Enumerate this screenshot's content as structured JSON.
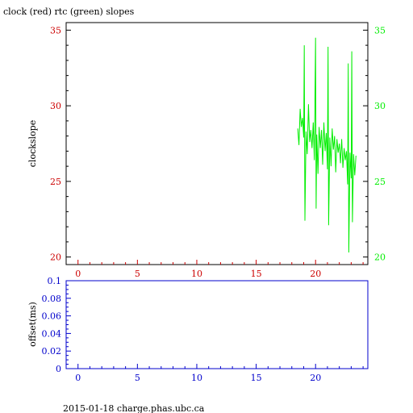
{
  "chart_data": [
    {
      "type": "line",
      "title": "clock (red) rtc (green) slopes",
      "ylabel": "clockslope",
      "xlabel": "",
      "xlim": [
        -1,
        24.4
      ],
      "ylim": [
        19.5,
        35.5
      ],
      "x_ticks": [
        "0",
        "5",
        "10",
        "15",
        "20"
      ],
      "y_ticks_left": [
        "20",
        "25",
        "30",
        "35"
      ],
      "y_ticks_right": [
        "20",
        "25",
        "30",
        "35"
      ],
      "grid": false,
      "colors": {
        "axes": "#000000",
        "left_ticks": "#cc0000",
        "right_ticks": "#00ee00",
        "x_ticks": "#cc0000"
      },
      "series": [
        {
          "name": "rtc",
          "color": "#00ee00",
          "x": [
            18.5,
            18.6,
            18.7,
            18.8,
            18.9,
            19.0,
            19.05,
            19.1,
            19.2,
            19.3,
            19.4,
            19.5,
            19.6,
            19.7,
            19.8,
            19.9,
            20.0,
            20.05,
            20.1,
            20.2,
            20.3,
            20.4,
            20.5,
            20.6,
            20.7,
            20.8,
            20.9,
            21.0,
            21.05,
            21.1,
            21.2,
            21.3,
            21.4,
            21.5,
            21.6,
            21.7,
            21.8,
            21.9,
            22.0,
            22.1,
            22.2,
            22.3,
            22.4,
            22.5,
            22.6,
            22.7,
            22.75,
            22.8,
            22.9,
            23.0,
            23.05,
            23.1,
            23.2,
            23.3,
            23.4
          ],
          "values": [
            28.5,
            27.4,
            29.8,
            28.6,
            29.2,
            27.9,
            34.0,
            22.4,
            28.3,
            26.8,
            30.1,
            27.6,
            28.4,
            27.2,
            28.9,
            26.4,
            34.5,
            23.2,
            28.1,
            25.5,
            28.6,
            27.2,
            28.4,
            26.1,
            28.9,
            27.0,
            28.2,
            25.8,
            33.9,
            22.1,
            27.9,
            26.0,
            28.5,
            27.1,
            28.0,
            25.6,
            27.8,
            26.9,
            27.5,
            26.2,
            27.8,
            25.9,
            27.2,
            26.4,
            27.0,
            24.8,
            32.8,
            20.3,
            26.9,
            25.2,
            33.6,
            22.3,
            26.8,
            25.4,
            26.7
          ]
        }
      ]
    },
    {
      "type": "line",
      "title": "",
      "ylabel": "offset(ms)",
      "xlabel": "",
      "xlim": [
        -1,
        24.4
      ],
      "ylim": [
        0,
        0.1
      ],
      "x_ticks": [
        "0",
        "5",
        "10",
        "15",
        "20"
      ],
      "y_ticks": [
        "0",
        "0.02",
        "0.04",
        "0.06",
        "0.08",
        "0.1"
      ],
      "grid": false,
      "colors": {
        "axes": "#0000cc",
        "ticks": "#0000cc"
      },
      "series": []
    }
  ],
  "footer": "2015-01-18 charge.phas.ubc.ca"
}
